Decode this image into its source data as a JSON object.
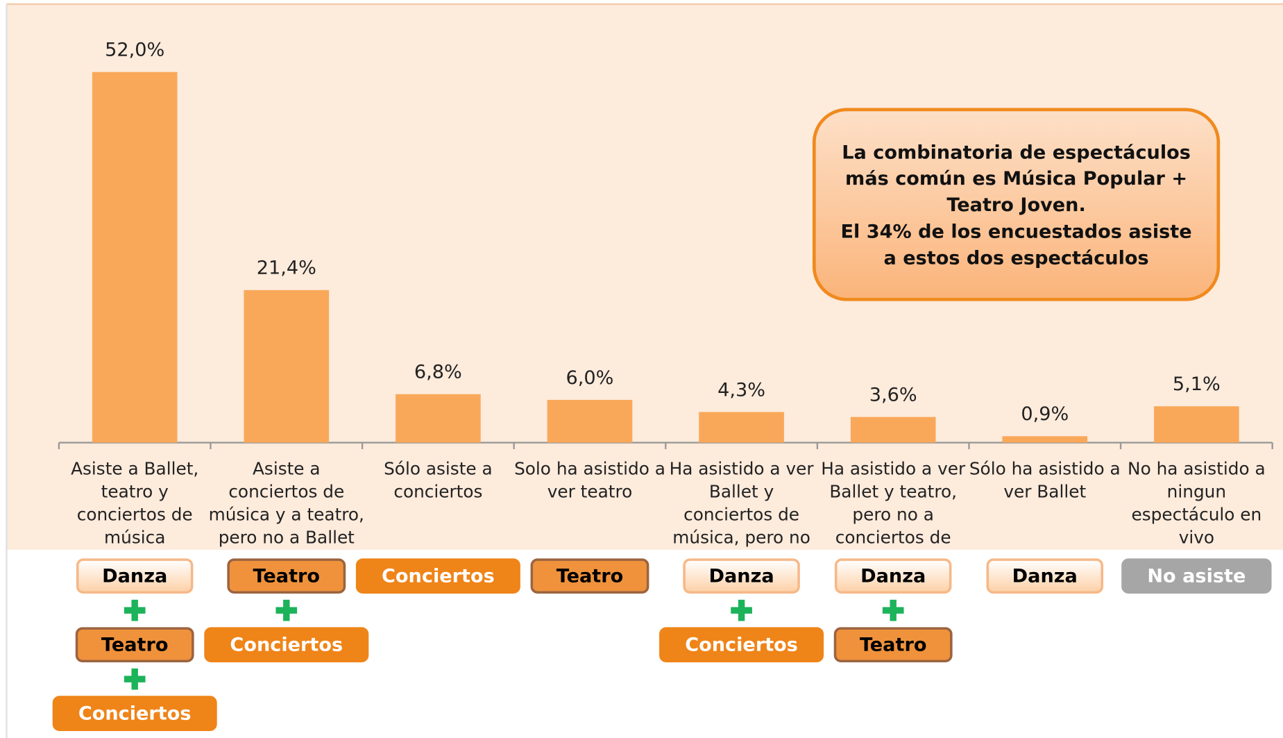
{
  "chart_data": {
    "type": "bar",
    "categories": [
      "Asiste a Ballet, teatro y conciertos de música",
      "Asiste a conciertos de música y a teatro, pero no a Ballet",
      "Sólo asiste a conciertos",
      "Solo ha asistido a ver teatro",
      "Ha asistido a ver Ballet y conciertos de música, pero no",
      "Ha asistido a ver Ballet y teatro, pero no a conciertos de",
      "Sólo ha asistido a ver Ballet",
      "No ha asistido a ningun espectáculo en vivo"
    ],
    "values": [
      52.0,
      21.4,
      6.8,
      6.0,
      4.3,
      3.6,
      0.9,
      5.1
    ],
    "value_labels": [
      "52,0%",
      "21,4%",
      "6,8%",
      "6,0%",
      "4,3%",
      "3,6%",
      "0,9%",
      "5,1%"
    ],
    "color": "#f9a85a",
    "annotations": [
      "La combinatoria de espectáculos más común es Música Popular + Teatro Joven.",
      "El 34% de los encuestados asiste a estos dos espectáculos"
    ],
    "tags": [
      [
        {
          "text": "Danza",
          "color": "#fdd7b5",
          "border": "#f6b888",
          "text_color": "#000000"
        },
        {
          "text": "Teatro",
          "color": "#f0923c",
          "border": "#9c6440",
          "text_color": "#000000"
        },
        {
          "text": "Conciertos",
          "color": "#ef8418",
          "border": "#ef8418",
          "text_color": "#ffffff"
        }
      ],
      [
        {
          "text": "Teatro",
          "color": "#f0923c",
          "border": "#9c6440",
          "text_color": "#000000"
        },
        {
          "text": "Conciertos",
          "color": "#ef8418",
          "border": "#ef8418",
          "text_color": "#ffffff"
        }
      ],
      [
        {
          "text": "Conciertos",
          "color": "#ef8418",
          "border": "#ef8418",
          "text_color": "#ffffff"
        }
      ],
      [
        {
          "text": "Teatro",
          "color": "#f0923c",
          "border": "#9c6440",
          "text_color": "#000000"
        }
      ],
      [
        {
          "text": "Danza",
          "color": "#fdd7b5",
          "border": "#f6b888",
          "text_color": "#000000"
        },
        {
          "text": "Conciertos",
          "color": "#ef8418",
          "border": "#ef8418",
          "text_color": "#ffffff"
        }
      ],
      [
        {
          "text": "Danza",
          "color": "#fdd7b5",
          "border": "#f6b888",
          "text_color": "#000000"
        },
        {
          "text": "Teatro",
          "color": "#f0923c",
          "border": "#9c6440",
          "text_color": "#000000"
        }
      ],
      [
        {
          "text": "Danza",
          "color": "#fdd7b5",
          "border": "#f6b888",
          "text_color": "#000000"
        }
      ],
      [
        {
          "text": "No asiste",
          "color": "#a6a6a6",
          "border": "#a6a6a6",
          "text_color": "#ffffff"
        }
      ]
    ]
  }
}
